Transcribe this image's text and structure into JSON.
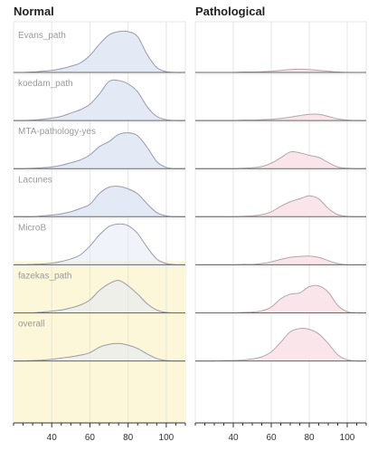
{
  "chart_data": {
    "type": "area",
    "subtype": "ridgeline",
    "panels": [
      {
        "title": "Normal",
        "fill": "#e3e9f5",
        "stroke": "#999aab"
      },
      {
        "title": "Pathological",
        "fill": "#fae6ea",
        "stroke": "#b3a6ab"
      }
    ],
    "row_labels": [
      "Evans_path",
      "koedam_path",
      "MTA-pathology-yes",
      "Lacunes",
      "MicroB",
      "fazekas_path",
      "overall"
    ],
    "x": [
      20,
      25,
      30,
      35,
      40,
      45,
      50,
      55,
      60,
      65,
      70,
      75,
      80,
      85,
      90,
      95,
      100,
      105,
      110
    ],
    "xlim": [
      20,
      110
    ],
    "x_ticks": [
      40,
      60,
      80,
      100
    ],
    "ylim": [
      0,
      1
    ],
    "series": [
      {
        "panel": "Normal",
        "name": "Evans_path",
        "values": [
          0,
          0,
          0.01,
          0.03,
          0.05,
          0.09,
          0.15,
          0.23,
          0.41,
          0.68,
          0.9,
          0.98,
          0.98,
          0.86,
          0.43,
          0.12,
          0.02,
          0,
          0
        ]
      },
      {
        "panel": "Normal",
        "name": "koedam_path",
        "values": [
          0,
          0,
          0.01,
          0.03,
          0.06,
          0.1,
          0.18,
          0.26,
          0.39,
          0.64,
          0.94,
          0.96,
          0.88,
          0.69,
          0.33,
          0.1,
          0.02,
          0,
          0
        ]
      },
      {
        "panel": "Normal",
        "name": "MTA-pathology-yes",
        "values": [
          0,
          0,
          0.01,
          0.02,
          0.04,
          0.08,
          0.14,
          0.21,
          0.33,
          0.53,
          0.65,
          0.82,
          0.86,
          0.79,
          0.51,
          0.17,
          0.03,
          0,
          0
        ]
      },
      {
        "panel": "Normal",
        "name": "Lacunes",
        "values": [
          0,
          0,
          0,
          0.02,
          0.04,
          0.07,
          0.12,
          0.2,
          0.3,
          0.56,
          0.71,
          0.73,
          0.67,
          0.55,
          0.31,
          0.1,
          0.02,
          0,
          0
        ]
      },
      {
        "panel": "Normal",
        "name": "MicroB",
        "values": [
          0,
          0,
          0.01,
          0.02,
          0.04,
          0.08,
          0.14,
          0.24,
          0.45,
          0.72,
          0.92,
          0.98,
          0.94,
          0.75,
          0.42,
          0.14,
          0.03,
          0,
          0
        ]
      },
      {
        "panel": "Normal",
        "name": "fazekas_path",
        "values": [
          0,
          0,
          0,
          0.02,
          0.04,
          0.07,
          0.12,
          0.19,
          0.31,
          0.54,
          0.7,
          0.78,
          0.65,
          0.45,
          0.22,
          0.07,
          0.01,
          0,
          0
        ]
      },
      {
        "panel": "Normal",
        "name": "overall",
        "values": [
          0,
          0,
          0.01,
          0.02,
          0.04,
          0.07,
          0.1,
          0.14,
          0.2,
          0.33,
          0.4,
          0.42,
          0.38,
          0.3,
          0.17,
          0.06,
          0.01,
          0,
          0
        ]
      },
      {
        "panel": "Pathological",
        "name": "Evans_path",
        "values": [
          0,
          0,
          0,
          0,
          0,
          0.01,
          0.01,
          0.02,
          0.03,
          0.05,
          0.07,
          0.08,
          0.07,
          0.05,
          0.03,
          0.01,
          0,
          0,
          0
        ]
      },
      {
        "panel": "Pathological",
        "name": "koedam_path",
        "values": [
          0,
          0,
          0,
          0,
          0,
          0.01,
          0.01,
          0.02,
          0.03,
          0.05,
          0.08,
          0.12,
          0.15,
          0.15,
          0.1,
          0.04,
          0.01,
          0,
          0
        ]
      },
      {
        "panel": "Pathological",
        "name": "MTA-pathology-yes",
        "values": [
          0,
          0,
          0,
          0,
          0,
          0.01,
          0.02,
          0.05,
          0.13,
          0.26,
          0.4,
          0.38,
          0.32,
          0.27,
          0.15,
          0.04,
          0.01,
          0,
          0
        ]
      },
      {
        "panel": "Pathological",
        "name": "Lacunes",
        "values": [
          0,
          0,
          0,
          0,
          0,
          0.01,
          0.02,
          0.05,
          0.12,
          0.25,
          0.36,
          0.43,
          0.5,
          0.43,
          0.2,
          0.05,
          0.01,
          0,
          0
        ]
      },
      {
        "panel": "Pathological",
        "name": "MicroB",
        "values": [
          0,
          0,
          0,
          0,
          0,
          0.01,
          0.01,
          0.03,
          0.07,
          0.13,
          0.18,
          0.2,
          0.21,
          0.18,
          0.1,
          0.03,
          0,
          0,
          0
        ]
      },
      {
        "panel": "Pathological",
        "name": "fazekas_path",
        "values": [
          0,
          0,
          0,
          0,
          0,
          0.01,
          0.02,
          0.05,
          0.14,
          0.34,
          0.45,
          0.48,
          0.63,
          0.65,
          0.5,
          0.18,
          0.03,
          0,
          0
        ]
      },
      {
        "panel": "Pathological",
        "name": "overall",
        "values": [
          0,
          0,
          0,
          0.01,
          0.01,
          0.02,
          0.05,
          0.1,
          0.22,
          0.45,
          0.7,
          0.78,
          0.76,
          0.65,
          0.42,
          0.15,
          0.03,
          0,
          0
        ]
      }
    ],
    "highlight": {
      "panel": "Normal",
      "rows_from": "MicroB",
      "color": "#fbf7d8"
    },
    "grid": true
  }
}
